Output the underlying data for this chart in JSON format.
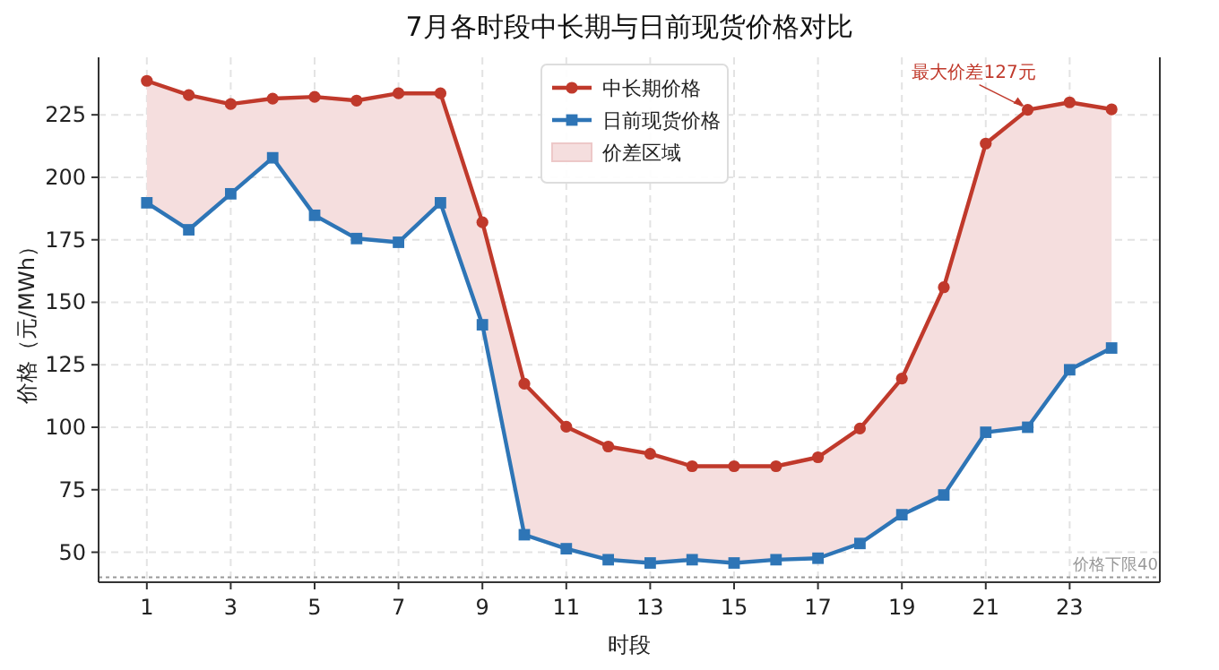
{
  "chart_data": {
    "type": "line",
    "title": "7月各时段中长期与日前现货价格对比",
    "xlabel": "时段",
    "ylabel": "价格（元/MWh）",
    "x": [
      1,
      2,
      3,
      4,
      5,
      6,
      7,
      8,
      9,
      10,
      11,
      12,
      13,
      14,
      15,
      16,
      17,
      18,
      19,
      20,
      21,
      22,
      23,
      24
    ],
    "series": [
      {
        "name": "中长期价格",
        "color": "#c0392b",
        "marker": "circle",
        "values": [
          238.6,
          232.9,
          229.3,
          231.5,
          232.2,
          230.7,
          233.6,
          233.6,
          182,
          117.4,
          100.2,
          92.3,
          89.4,
          84.4,
          84.4,
          84.4,
          88,
          99.5,
          119.5,
          156,
          213.5,
          227,
          230,
          227.2
        ],
        "lower": [
          189.8,
          179,
          193.4,
          207.8,
          184.8,
          175.5,
          174,
          189.8,
          141,
          57,
          51.4,
          47,
          45.7,
          47,
          45.7,
          47,
          47.6,
          53.5,
          65,
          72.9,
          98,
          100,
          123,
          131.7
        ],
        "upper": [
          238.6,
          232.9,
          229.3,
          231.5,
          232.2,
          230.7,
          233.6,
          233.6,
          182,
          117.4,
          100.2,
          92.3,
          89.4,
          84.4,
          84.4,
          84.4,
          88,
          99.5,
          119.5,
          156,
          213.5,
          227,
          230,
          227.2
        ]
      },
      {
        "name": "日前现货价格",
        "color": "#2e75b6",
        "marker": "square",
        "values": [
          189.8,
          179,
          193.4,
          207.8,
          184.8,
          175.5,
          174,
          189.8,
          141,
          57,
          51.4,
          47,
          45.7,
          47,
          45.7,
          47,
          47.6,
          53.5,
          65,
          72.9,
          98,
          100,
          123,
          131.7
        ]
      },
      {
        "name": "价差区域",
        "type": "area",
        "color": "#f5dede",
        "values": [
          null,
          null,
          null,
          null,
          null,
          null,
          null,
          null,
          null,
          null,
          null,
          null,
          null,
          null,
          null,
          null,
          null,
          null,
          null,
          null,
          null,
          null,
          null,
          null
        ]
      }
    ],
    "xlim": [
      -0.15,
      25.15
    ],
    "xticks": [
      1,
      3,
      5,
      7,
      9,
      11,
      13,
      15,
      17,
      19,
      21,
      23
    ],
    "ylim": [
      38,
      248
    ],
    "yticks": [
      50,
      75,
      100,
      125,
      150,
      175,
      200,
      225
    ],
    "grid": true,
    "legend": "top",
    "ref_lines": [
      {
        "axis": "y",
        "value": 40,
        "label": "价格下限40",
        "color": "#999999",
        "line_style": "dotted"
      }
    ],
    "annotations": [
      {
        "text": "最大价差127元",
        "x": 22,
        "y": 227
      }
    ]
  }
}
